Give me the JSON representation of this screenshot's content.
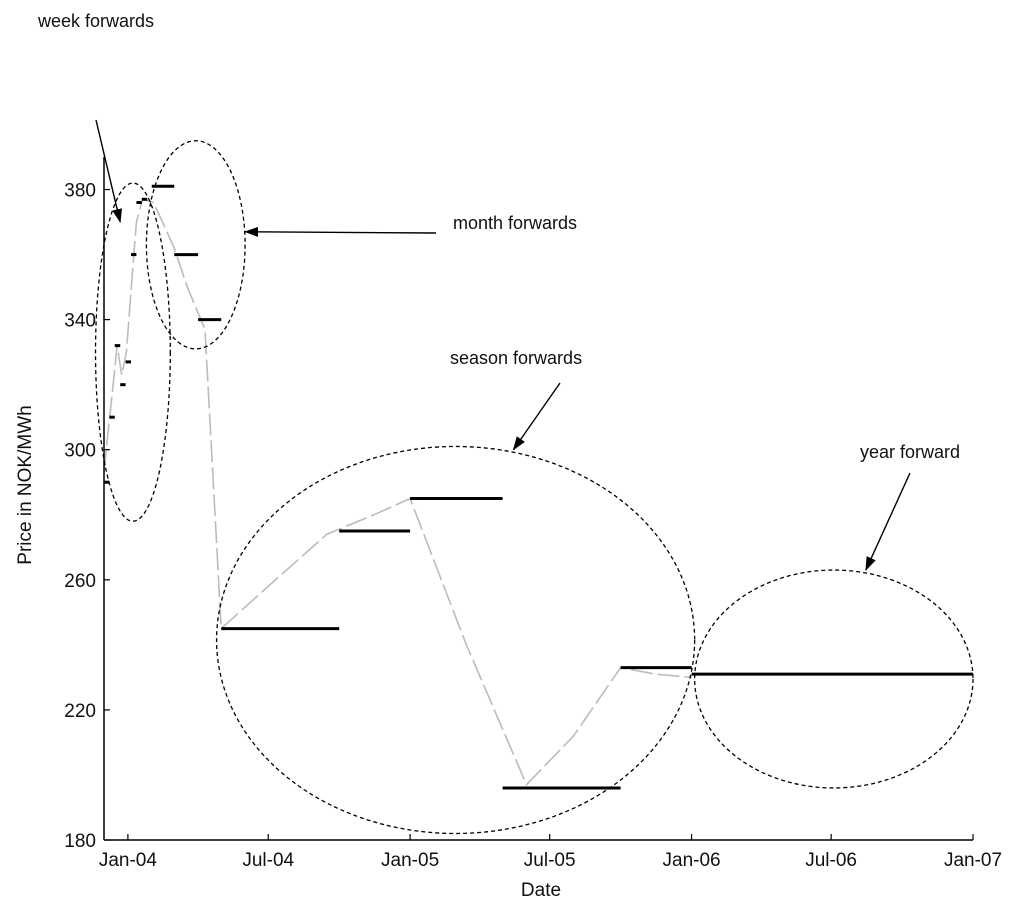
{
  "chart_data": {
    "type": "line",
    "title": "",
    "xlabel": "Date",
    "ylabel": "Price in NOK/MWh",
    "ylim": [
      180,
      390
    ],
    "xlim": [
      "2003-12-01",
      "2007-01-01"
    ],
    "x_ticks": [
      {
        "date": "2004-01-01",
        "label": "Jan-04"
      },
      {
        "date": "2004-07-01",
        "label": "Jul-04"
      },
      {
        "date": "2005-01-01",
        "label": "Jan-05"
      },
      {
        "date": "2005-07-01",
        "label": "Jul-05"
      },
      {
        "date": "2006-01-01",
        "label": "Jan-06"
      },
      {
        "date": "2006-07-01",
        "label": "Jul-06"
      },
      {
        "date": "2007-01-01",
        "label": "Jan-07"
      }
    ],
    "y_ticks": [
      180,
      220,
      260,
      300,
      340,
      380
    ],
    "grid": false,
    "series": [
      {
        "kind": "forward-contracts",
        "color": "#000000",
        "segments": [
          {
            "group": "week",
            "start": "2003-12-01",
            "end": "2003-12-08",
            "value": 290
          },
          {
            "group": "week",
            "start": "2003-12-08",
            "end": "2003-12-15",
            "value": 310
          },
          {
            "group": "week",
            "start": "2003-12-15",
            "end": "2003-12-22",
            "value": 332
          },
          {
            "group": "week",
            "start": "2003-12-22",
            "end": "2003-12-29",
            "value": 320
          },
          {
            "group": "week",
            "start": "2003-12-29",
            "end": "2004-01-05",
            "value": 327
          },
          {
            "group": "week",
            "start": "2004-01-05",
            "end": "2004-01-12",
            "value": 360
          },
          {
            "group": "week",
            "start": "2004-01-12",
            "end": "2004-01-19",
            "value": 376
          },
          {
            "group": "week",
            "start": "2004-01-19",
            "end": "2004-01-26",
            "value": 377
          },
          {
            "group": "month",
            "start": "2004-02-01",
            "end": "2004-03-01",
            "value": 381
          },
          {
            "group": "month",
            "start": "2004-03-01",
            "end": "2004-04-01",
            "value": 360
          },
          {
            "group": "month",
            "start": "2004-04-01",
            "end": "2004-05-01",
            "value": 340
          },
          {
            "group": "season",
            "start": "2004-05-01",
            "end": "2004-10-01",
            "value": 245
          },
          {
            "group": "season",
            "start": "2004-10-01",
            "end": "2005-01-01",
            "value": 275
          },
          {
            "group": "season",
            "start": "2005-01-01",
            "end": "2005-05-01",
            "value": 285
          },
          {
            "group": "season",
            "start": "2005-05-01",
            "end": "2005-10-01",
            "value": 196
          },
          {
            "group": "season",
            "start": "2005-10-01",
            "end": "2006-01-01",
            "value": 233
          },
          {
            "group": "year",
            "start": "2006-01-01",
            "end": "2007-01-01",
            "value": 231
          }
        ]
      },
      {
        "kind": "smooth-curve",
        "color": "#bbbbbb",
        "points": [
          [
            "2003-12-01",
            293
          ],
          [
            "2003-12-06",
            305
          ],
          [
            "2003-12-12",
            318
          ],
          [
            "2003-12-18",
            332
          ],
          [
            "2003-12-24",
            323
          ],
          [
            "2003-12-30",
            330
          ],
          [
            "2004-01-06",
            352
          ],
          [
            "2004-01-12",
            370
          ],
          [
            "2004-01-20",
            377
          ],
          [
            "2004-02-03",
            376
          ],
          [
            "2004-02-15",
            370
          ],
          [
            "2004-03-01",
            362
          ],
          [
            "2004-03-18",
            350
          ],
          [
            "2004-04-10",
            337
          ],
          [
            "2004-05-01",
            245
          ],
          [
            "2004-07-01",
            258
          ],
          [
            "2004-09-15",
            274
          ],
          [
            "2004-11-15",
            280
          ],
          [
            "2005-01-01",
            285
          ],
          [
            "2005-03-15",
            240
          ],
          [
            "2005-06-01",
            197
          ],
          [
            "2005-08-01",
            212
          ],
          [
            "2005-10-01",
            233
          ],
          [
            "2005-11-15",
            231
          ],
          [
            "2006-01-01",
            230
          ]
        ]
      }
    ],
    "annotations": [
      {
        "label": "week forwards",
        "ellipse": {
          "start": "2003-11-20",
          "end": "2004-02-25",
          "ymin": 278,
          "ymax": 382
        },
        "arrow_to": [
          "2003-12-22",
          370
        ]
      },
      {
        "label": "month forwards",
        "ellipse": {
          "start": "2004-01-25",
          "end": "2004-06-01",
          "ymin": 331,
          "ymax": 395
        },
        "arrow_to": [
          "2004-06-01",
          367
        ]
      },
      {
        "label": "season forwards",
        "ellipse": {
          "start": "2004-04-25",
          "end": "2006-01-05",
          "ymin": 182,
          "ymax": 301
        },
        "arrow_to": [
          "2005-05-15",
          300
        ]
      },
      {
        "label": "year forward",
        "ellipse": {
          "start": "2006-01-05",
          "end": "2007-01-01",
          "ymin": 196,
          "ymax": 263
        },
        "arrow_to": [
          "2006-08-15",
          263
        ]
      }
    ]
  }
}
